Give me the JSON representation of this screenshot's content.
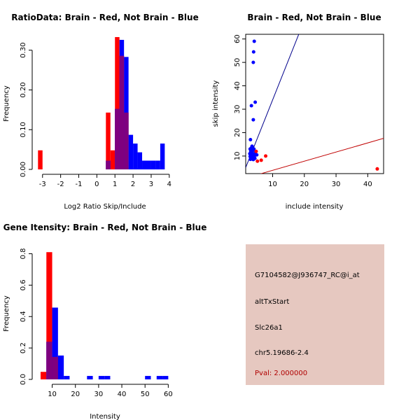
{
  "colors": {
    "red": "#ff0000",
    "blue": "#0000ff",
    "purple": "#7f007f",
    "info_bg": "#e6c8c0",
    "pval": "#b00000"
  },
  "chart_data": [
    {
      "id": "ratio",
      "type": "bar",
      "title": "RatioData: Brain - Red, Not Brain - Blue",
      "xlabel": "Log2 Ratio Skip/Include",
      "ylabel": "Frequency",
      "xlim": [
        -3.3,
        4.2
      ],
      "ylim": [
        0,
        0.34
      ],
      "xticks": [
        -3,
        -2,
        -1,
        0,
        1,
        2,
        3,
        4
      ],
      "yticks": [
        0.0,
        0.1,
        0.2,
        0.3
      ],
      "ytick_labels": [
        "0.00",
        "0.10",
        "0.20",
        "0.30"
      ],
      "bin_width": 0.25,
      "series": [
        {
          "name": "Brain",
          "color": "red",
          "bins": [
            [
              -3.25,
              0.048
            ],
            [
              0.5,
              0.143
            ],
            [
              0.75,
              0.048
            ],
            [
              1.0,
              0.333
            ],
            [
              1.25,
              0.286
            ],
            [
              1.5,
              0.143
            ]
          ]
        },
        {
          "name": "Not Brain",
          "color": "blue",
          "bins": [
            [
              0.5,
              0.022
            ],
            [
              1.0,
              0.152
            ],
            [
              1.25,
              0.326
            ],
            [
              1.5,
              0.283
            ],
            [
              1.75,
              0.087
            ],
            [
              2.0,
              0.065
            ],
            [
              2.25,
              0.043
            ],
            [
              2.5,
              0.022
            ],
            [
              2.75,
              0.022
            ],
            [
              3.0,
              0.022
            ],
            [
              3.25,
              0.022
            ],
            [
              3.5,
              0.065
            ]
          ]
        }
      ]
    },
    {
      "id": "scatter",
      "type": "scatter",
      "title": "Brain - Red, Not Brain - Blue",
      "xlabel": "include intensity",
      "ylabel": "skip intensity",
      "xlim": [
        1.5,
        45
      ],
      "ylim": [
        2.5,
        62
      ],
      "xticks": [
        10,
        20,
        30,
        40
      ],
      "yticks": [
        10,
        20,
        30,
        40,
        50,
        60
      ],
      "lines": [
        {
          "color": "blue",
          "slope": 3.4,
          "intercept": 0
        },
        {
          "color": "red",
          "slope": 0.39,
          "intercept": 0
        }
      ],
      "series": [
        {
          "name": "Not Brain",
          "color": "blue",
          "points": [
            [
              4.2,
              59
            ],
            [
              4.0,
              54.5
            ],
            [
              3.9,
              50
            ],
            [
              4.5,
              33
            ],
            [
              3.3,
              31.5
            ],
            [
              3.9,
              25.5
            ],
            [
              3.0,
              17
            ],
            [
              2.9,
              13
            ],
            [
              3.3,
              13.5
            ],
            [
              3.5,
              14.2
            ],
            [
              3.1,
              12
            ],
            [
              3.4,
              11.5
            ],
            [
              3.8,
              12.5
            ],
            [
              4.1,
              13
            ],
            [
              2.8,
              11
            ],
            [
              3.2,
              10.5
            ],
            [
              3.6,
              10.2
            ],
            [
              4.0,
              10.8
            ],
            [
              4.5,
              11.5
            ],
            [
              2.9,
              9.8
            ],
            [
              3.3,
              9.2
            ],
            [
              3.7,
              9.5
            ],
            [
              4.2,
              9.8
            ],
            [
              3.0,
              8.6
            ],
            [
              3.5,
              8.8
            ],
            [
              3.9,
              8.5
            ],
            [
              4.4,
              9.0
            ],
            [
              5.0,
              10.5
            ]
          ]
        },
        {
          "name": "Brain",
          "color": "red",
          "points": [
            [
              43,
              4.5
            ],
            [
              7.8,
              10
            ],
            [
              6.4,
              8.2
            ],
            [
              5.2,
              7.8
            ],
            [
              4.8,
              12
            ]
          ]
        }
      ]
    },
    {
      "id": "intensity",
      "type": "bar",
      "title": "Gene Itensity: Brain - Red, Not Brain - Blue",
      "xlabel": "Intensity",
      "ylabel": "Frequency",
      "xlim": [
        3.5,
        62
      ],
      "ylim": [
        0,
        0.86
      ],
      "xticks": [
        10,
        20,
        30,
        40,
        50,
        60
      ],
      "yticks": [
        0.0,
        0.2,
        0.4,
        0.6,
        0.8
      ],
      "ytick_labels": [
        "0.0",
        "0.2",
        "0.4",
        "0.6",
        "0.8"
      ],
      "bin_width": 2.5,
      "series": [
        {
          "name": "Brain",
          "color": "red",
          "bins": [
            [
              5.0,
              0.048
            ],
            [
              7.5,
              0.81
            ],
            [
              10.0,
              0.143
            ]
          ]
        },
        {
          "name": "Not Brain",
          "color": "blue",
          "bins": [
            [
              7.5,
              0.239
            ],
            [
              10.0,
              0.457
            ],
            [
              12.5,
              0.152
            ],
            [
              15.0,
              0.022
            ],
            [
              25.0,
              0.022
            ],
            [
              30.0,
              0.022
            ],
            [
              32.5,
              0.022
            ],
            [
              50.0,
              0.022
            ],
            [
              55.0,
              0.022
            ],
            [
              57.5,
              0.022
            ]
          ]
        }
      ]
    }
  ],
  "info_panel": {
    "probe": "G7104582@J936747_RC@i_at",
    "event": "altTxStart",
    "gene": "Slc26a1",
    "location": "chr5.19686-2.4",
    "pval": "Pval: 2.000000"
  }
}
